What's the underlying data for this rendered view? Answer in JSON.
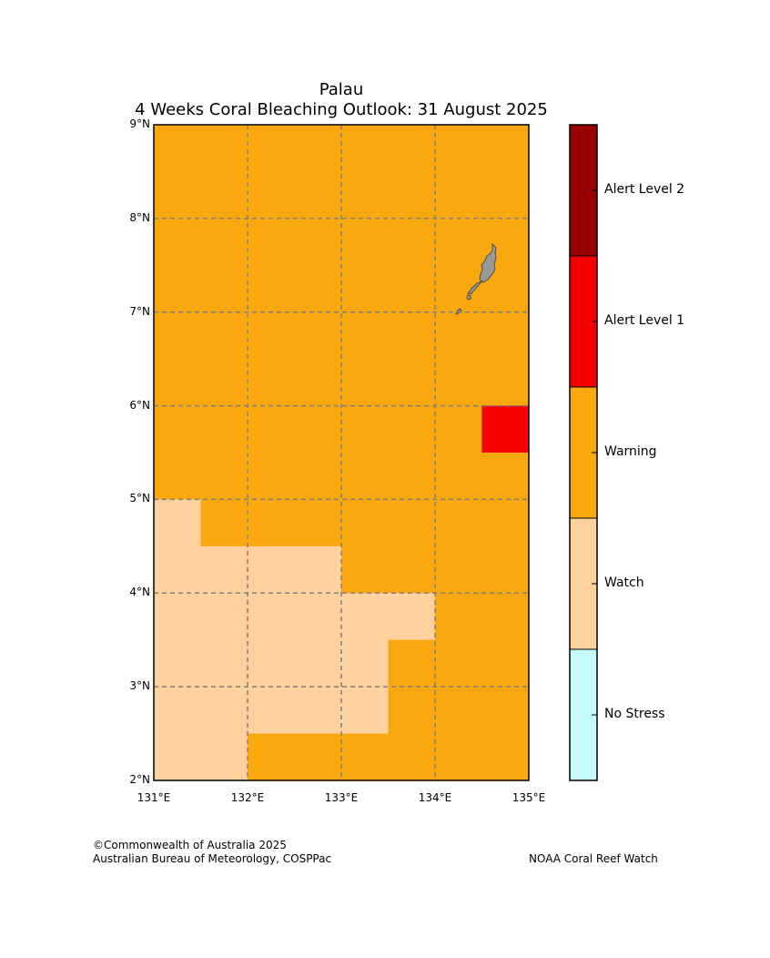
{
  "header": {
    "region": "Palau",
    "subtitle": "4 Weeks Coral Bleaching Outlook: 31 August 2025"
  },
  "map": {
    "lon_range": [
      131,
      135
    ],
    "lat_range": [
      2,
      9
    ],
    "lon_ticks": [
      "131°E",
      "132°E",
      "133°E",
      "134°E",
      "135°E"
    ],
    "lat_ticks": [
      "9°N",
      "8°N",
      "7°N",
      "6°N",
      "5°N",
      "4°N",
      "3°N",
      "2°N"
    ],
    "gridlines": true,
    "background_level": "Warning",
    "cells": [
      {
        "lon": [
          131,
          131.5
        ],
        "lat": [
          2,
          5
        ],
        "level": "Watch"
      },
      {
        "lon": [
          131.5,
          132
        ],
        "lat": [
          2,
          4.5
        ],
        "level": "Watch"
      },
      {
        "lon": [
          132,
          133
        ],
        "lat": [
          2.5,
          4.5
        ],
        "level": "Watch"
      },
      {
        "lon": [
          133,
          133.5
        ],
        "lat": [
          2.5,
          4
        ],
        "level": "Watch"
      },
      {
        "lon": [
          133.5,
          134
        ],
        "lat": [
          3.5,
          4
        ],
        "level": "Watch"
      },
      {
        "lon": [
          134.5,
          135
        ],
        "lat": [
          5.5,
          6
        ],
        "level": "Alert Level 1"
      }
    ],
    "land_color": "#999999"
  },
  "legend": {
    "levels": [
      {
        "label": "Alert Level 2",
        "color": "#990000"
      },
      {
        "label": "Alert Level 1",
        "color": "#f80000"
      },
      {
        "label": "Warning",
        "color": "#f9a80d"
      },
      {
        "label": "Watch",
        "color": "#ffd19e"
      },
      {
        "label": "No Stress",
        "color": "#c4fafa"
      }
    ]
  },
  "footer": {
    "copyright": "©Commonwealth of Australia 2025",
    "agencies": "Australian Bureau of Meteorology, COSPPac",
    "noaa": "NOAA Coral Reef Watch"
  }
}
